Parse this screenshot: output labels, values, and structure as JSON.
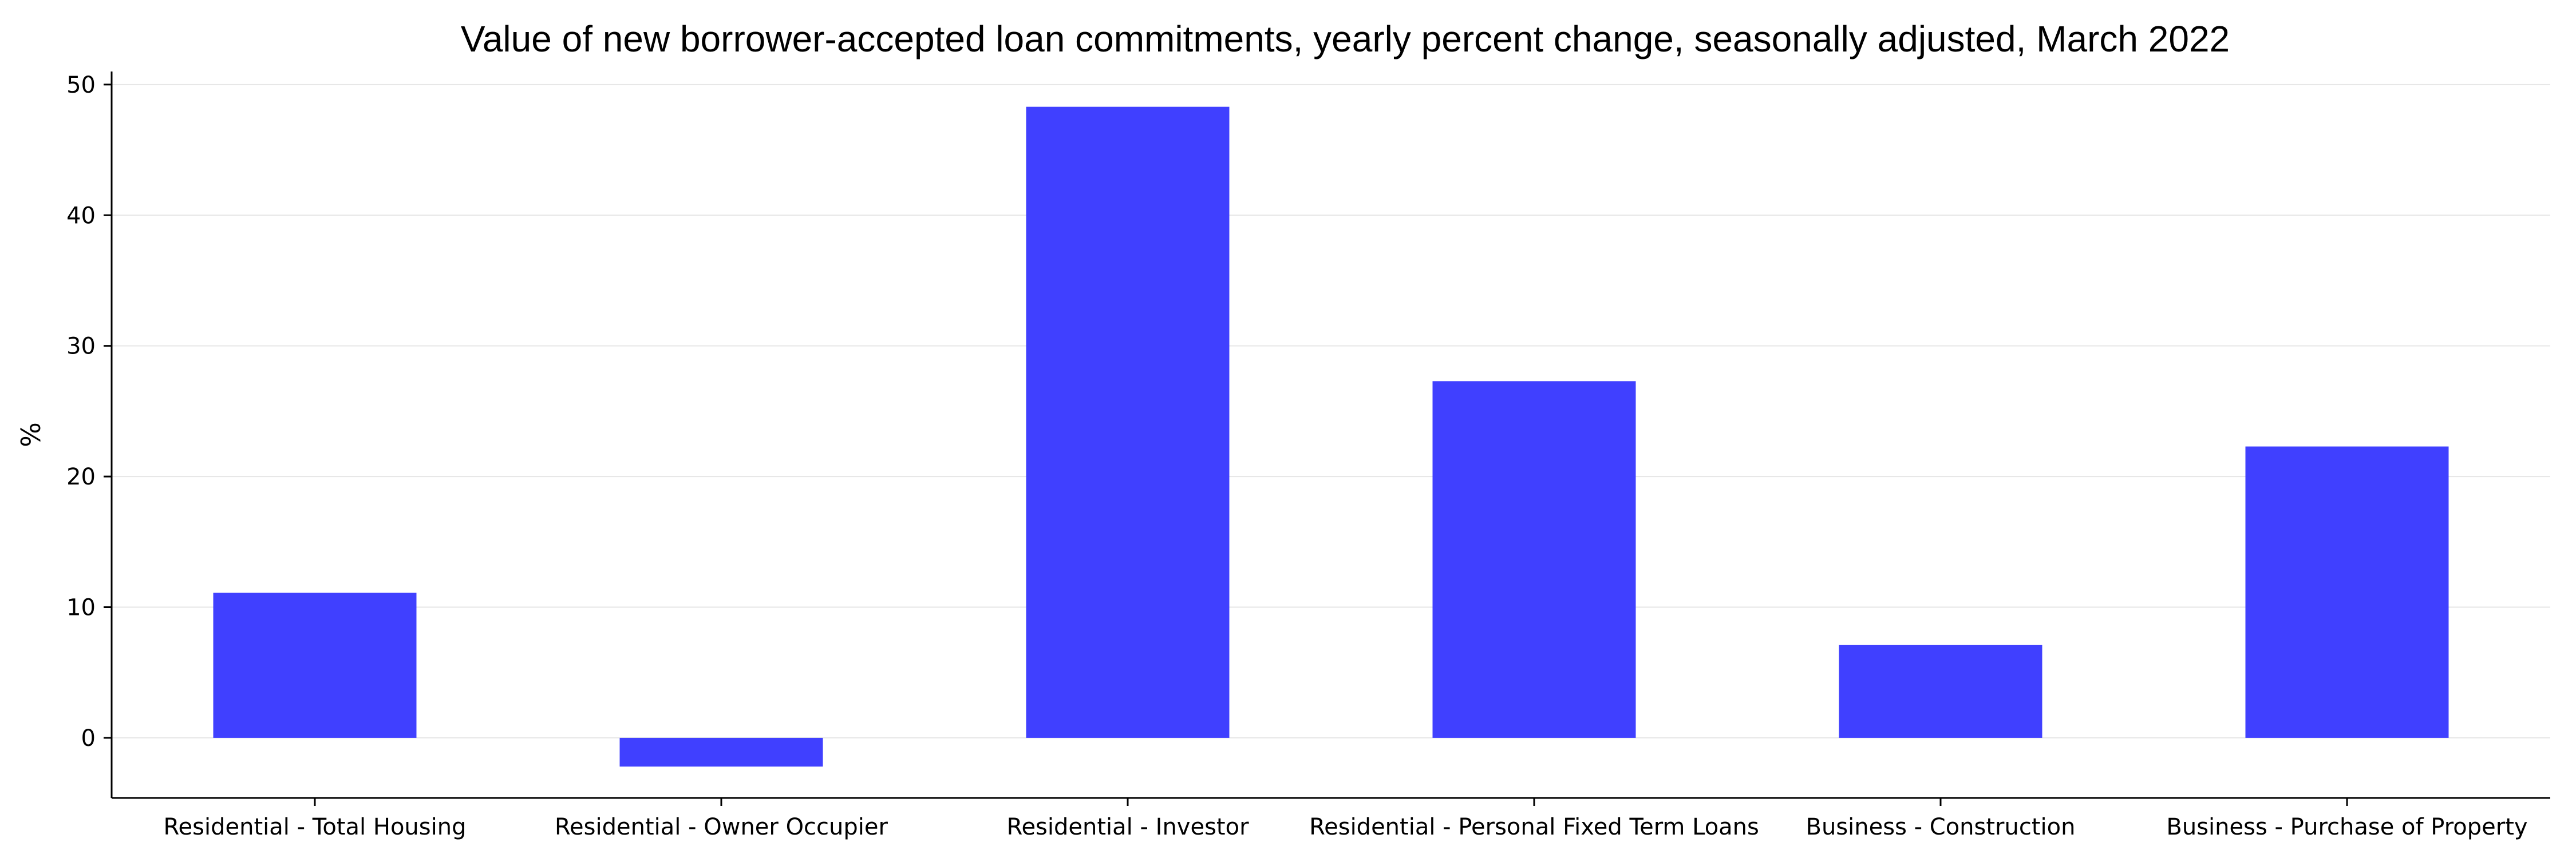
{
  "chart_data": {
    "type": "bar",
    "title": "Value of new borrower-accepted loan commitments, yearly percent change, seasonally adjusted, March 2022",
    "xlabel": "",
    "ylabel": "%",
    "categories": [
      "Residential - Total Housing",
      "Residential - Owner Occupier",
      "Residential - Investor",
      "Residential - Personal Fixed Term Loans",
      "Business - Construction",
      "Business - Purchase of Property"
    ],
    "values": [
      11.1,
      -2.2,
      48.3,
      27.3,
      7.1,
      22.3
    ],
    "ylim": [
      -4.6,
      51
    ],
    "yticks": [
      0,
      10,
      20,
      30,
      40,
      50
    ],
    "grid": true,
    "bar_color": "#4040ff"
  }
}
